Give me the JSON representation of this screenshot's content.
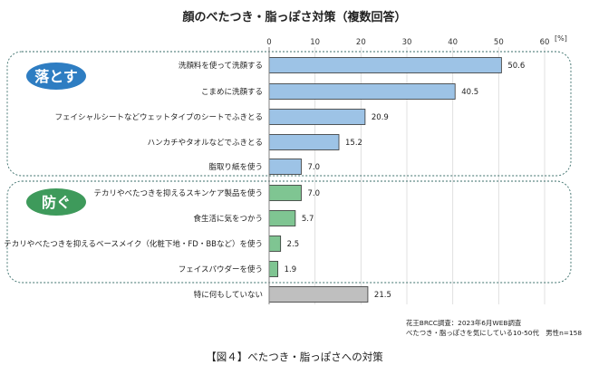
{
  "chart_data": {
    "type": "bar",
    "orientation": "horizontal",
    "title": "顔のべたつき・脂っぽさ対策（複数回答）",
    "unit_label": "[%]",
    "xlim": [
      0,
      60
    ],
    "x_ticks": [
      0,
      10,
      20,
      30,
      40,
      50,
      60
    ],
    "grid": true,
    "groups": [
      {
        "label": "落とす",
        "color": "#2e7dc2",
        "bar_color": "#9dc3e6",
        "items": [
          {
            "label": "洗顔料を使って洗顔する",
            "value": 50.6,
            "value_label": "50.6"
          },
          {
            "label": "こまめに洗顔する",
            "value": 40.5,
            "value_label": "40.5"
          },
          {
            "label": "フェイシャルシートなどウェットタイプのシートでふきとる",
            "value": 20.9,
            "value_label": "20.9"
          },
          {
            "label": "ハンカチやタオルなどでふきとる",
            "value": 15.2,
            "value_label": "15.2"
          },
          {
            "label": "脂取り紙を使う",
            "value": 7.0,
            "value_label": "7.0"
          }
        ]
      },
      {
        "label": "防ぐ",
        "color": "#3e9a5b",
        "bar_color": "#7fc592",
        "items": [
          {
            "label": "テカリやべたつきを抑えるスキンケア製品を使う",
            "value": 7.0,
            "value_label": "7.0"
          },
          {
            "label": "食生活に気をつかう",
            "value": 5.7,
            "value_label": "5.7"
          },
          {
            "label": "テカリやべたつきを抑えるベースメイク（化粧下地・FD・BBなど）を使う",
            "value": 2.5,
            "value_label": "2.5"
          },
          {
            "label": "フェイスパウダーを使う",
            "value": 1.9,
            "value_label": "1.9"
          }
        ]
      }
    ],
    "other": {
      "label": "特に何もしていない",
      "value": 21.5,
      "value_label": "21.5",
      "bar_color": "#bfbfbf"
    }
  },
  "source_lines": [
    "花王BRCC調査：2023年6月WEB調査",
    "べたつき・脂っぽさを気にしている10-50代　男性n=158"
  ],
  "caption": "【図４】べたつき・脂っぽさへの対策"
}
